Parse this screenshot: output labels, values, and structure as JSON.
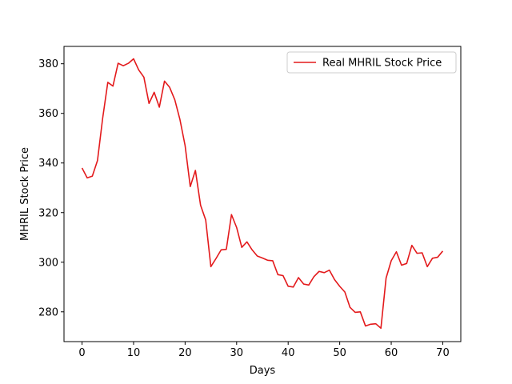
{
  "chart_data": {
    "type": "line",
    "title": "",
    "xlabel": "Days",
    "ylabel": "MHRIL Stock Price",
    "xlim": [
      -3.5,
      73.5
    ],
    "ylim": [
      268,
      387
    ],
    "xticks": [
      0,
      10,
      20,
      30,
      40,
      50,
      60,
      70
    ],
    "yticks": [
      280,
      300,
      320,
      340,
      360,
      380
    ],
    "grid": false,
    "legend_position": "top-right",
    "series": [
      {
        "name": "Real MHRIL Stock Price",
        "color": "#e31a1c",
        "x": [
          0,
          1,
          2,
          3,
          4,
          5,
          6,
          7,
          8,
          9,
          10,
          11,
          12,
          13,
          14,
          15,
          16,
          17,
          18,
          19,
          20,
          21,
          22,
          23,
          24,
          25,
          26,
          27,
          28,
          29,
          30,
          31,
          32,
          33,
          34,
          35,
          36,
          37,
          38,
          39,
          40,
          41,
          42,
          43,
          44,
          45,
          46,
          47,
          48,
          49,
          50,
          51,
          52,
          53,
          54,
          55,
          56,
          57,
          58,
          59,
          60,
          61,
          62,
          63,
          64,
          65,
          66,
          67,
          68,
          69,
          70
        ],
        "values": [
          338,
          334,
          334.7,
          341,
          358,
          372.5,
          371,
          380.2,
          379.2,
          380.2,
          382,
          377.5,
          374.6,
          364,
          368.5,
          362.5,
          373,
          370.5,
          365.5,
          357.5,
          347,
          330.5,
          337,
          323,
          317,
          298.2,
          301.5,
          305,
          305.2,
          319.2,
          314,
          306,
          308.2,
          305,
          302.5,
          301.7,
          300.8,
          300.6,
          295,
          294.6,
          290.3,
          290,
          293.8,
          291.2,
          290.8,
          294.2,
          296.3,
          295.8,
          296.8,
          293,
          290.3,
          288,
          281.8,
          279.8,
          280,
          274.3,
          275,
          275.2,
          273.4,
          293.6,
          300.6,
          304.2,
          298.8,
          299.5,
          306.8,
          303.6,
          303.8,
          298.2,
          301.6,
          302,
          304.5
        ]
      }
    ]
  }
}
